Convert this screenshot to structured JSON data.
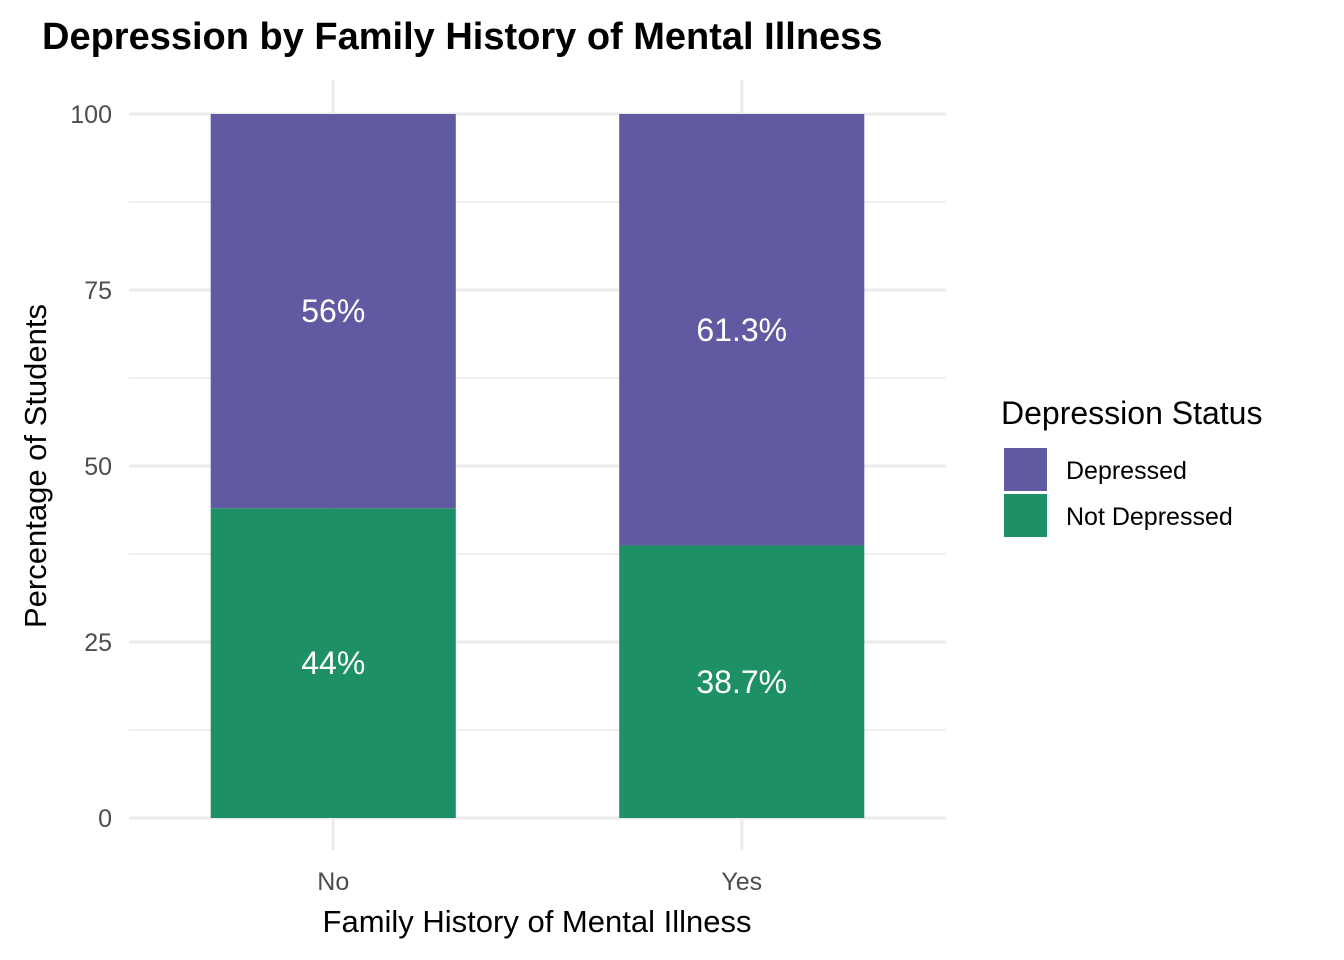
{
  "chart_data": {
    "type": "bar",
    "stacked": true,
    "title": "Depression by Family History of Mental Illness",
    "xlabel": "Family History of Mental Illness",
    "ylabel": "Percentage of Students",
    "categories": [
      "No",
      "Yes"
    ],
    "series": [
      {
        "name": "Not Depressed",
        "color": "#1E9065",
        "values": [
          44,
          38.7
        ],
        "labels": [
          "44%",
          "38.7%"
        ]
      },
      {
        "name": "Depressed",
        "color": "#605AA3",
        "values": [
          56,
          61.3
        ],
        "labels": [
          "56%",
          "61.3%"
        ]
      }
    ],
    "ylim": [
      0,
      100
    ],
    "yticks": [
      0,
      25,
      50,
      75,
      100
    ],
    "grid": true,
    "legend": {
      "title": "Depression Status",
      "position": "right",
      "items": [
        {
          "label": "Depressed",
          "color": "#605AA3"
        },
        {
          "label": "Not Depressed",
          "color": "#1E9065"
        }
      ]
    }
  }
}
